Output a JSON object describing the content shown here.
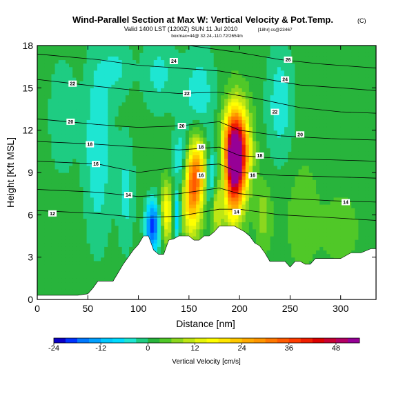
{
  "header": {
    "title": "Wind-Parallel Section at Max W: Vertical Velocity & Pot.Temp.",
    "copyright": "(C)",
    "valid_line": "Valid 1400 LST (1200Z) SUN 11 Jul 2010",
    "valid_suffix": "[18hr] cs@23467",
    "position_line": "boxmax=44@ 32.24,-110.72/2654m"
  },
  "chart_data": {
    "type": "heatmap",
    "title": "Wind-Parallel Section at Max W: Vertical Velocity & Pot.Temp.",
    "xlabel": "Distance [nm]",
    "ylabel": "Height [Kft MSL]",
    "xlim": [
      0,
      335
    ],
    "ylim": [
      0,
      18
    ],
    "x_ticks": [
      0,
      50,
      100,
      150,
      200,
      250,
      300
    ],
    "y_ticks": [
      0,
      3,
      6,
      9,
      12,
      15,
      18
    ],
    "colorbar": {
      "label": "Vertical Velocity [cm/s]",
      "tick_values": [
        -24,
        -12,
        0,
        12,
        24,
        36,
        48
      ],
      "range": [
        -24,
        54
      ],
      "bins": [
        {
          "from": -24,
          "to": -21,
          "color": "#0a00c8"
        },
        {
          "from": -21,
          "to": -18,
          "color": "#0032ff"
        },
        {
          "from": -18,
          "to": -15,
          "color": "#0078ff"
        },
        {
          "from": -15,
          "to": -12,
          "color": "#00a0ff"
        },
        {
          "from": -12,
          "to": -9,
          "color": "#00c8ff"
        },
        {
          "from": -9,
          "to": -6,
          "color": "#00dcff"
        },
        {
          "from": -6,
          "to": -3,
          "color": "#1ee6d2"
        },
        {
          "from": -3,
          "to": 0,
          "color": "#1ecc82"
        },
        {
          "from": 0,
          "to": 3,
          "color": "#28b43c"
        },
        {
          "from": 3,
          "to": 6,
          "color": "#50c828"
        },
        {
          "from": 6,
          "to": 9,
          "color": "#8cd71e"
        },
        {
          "from": 9,
          "to": 12,
          "color": "#bee614"
        },
        {
          "from": 12,
          "to": 15,
          "color": "#e6f50a"
        },
        {
          "from": 15,
          "to": 18,
          "color": "#ffff00"
        },
        {
          "from": 18,
          "to": 21,
          "color": "#ffe600"
        },
        {
          "from": 21,
          "to": 24,
          "color": "#ffc800"
        },
        {
          "from": 24,
          "to": 27,
          "color": "#ffaa00"
        },
        {
          "from": 27,
          "to": 30,
          "color": "#ff9600"
        },
        {
          "from": 30,
          "to": 33,
          "color": "#ff7800"
        },
        {
          "from": 33,
          "to": 36,
          "color": "#ff5a00"
        },
        {
          "from": 36,
          "to": 39,
          "color": "#ff3c00"
        },
        {
          "from": 39,
          "to": 42,
          "color": "#f01e00"
        },
        {
          "from": 42,
          "to": 45,
          "color": "#dc0000"
        },
        {
          "from": 45,
          "to": 48,
          "color": "#c80032"
        },
        {
          "from": 48,
          "to": 51,
          "color": "#b40064"
        },
        {
          "from": 51,
          "to": 54,
          "color": "#960096"
        }
      ]
    },
    "background_w": 2,
    "terrain": [
      [
        0,
        0.3
      ],
      [
        10,
        0.3
      ],
      [
        20,
        0.3
      ],
      [
        30,
        0.3
      ],
      [
        40,
        0.3
      ],
      [
        50,
        0.4
      ],
      [
        55,
        0.8
      ],
      [
        60,
        1.3
      ],
      [
        65,
        1.3
      ],
      [
        70,
        1.3
      ],
      [
        75,
        1.3
      ],
      [
        80,
        1.9
      ],
      [
        85,
        2.5
      ],
      [
        90,
        3.0
      ],
      [
        95,
        3.5
      ],
      [
        100,
        3.9
      ],
      [
        105,
        4.5
      ],
      [
        110,
        4.5
      ],
      [
        115,
        3.5
      ],
      [
        120,
        3.2
      ],
      [
        125,
        3.2
      ],
      [
        130,
        4.2
      ],
      [
        135,
        4.3
      ],
      [
        140,
        4.5
      ],
      [
        145,
        4.5
      ],
      [
        150,
        4.5
      ],
      [
        155,
        4.2
      ],
      [
        160,
        4.2
      ],
      [
        165,
        4.5
      ],
      [
        170,
        4.5
      ],
      [
        175,
        4.8
      ],
      [
        180,
        5.2
      ],
      [
        185,
        5.2
      ],
      [
        190,
        5.2
      ],
      [
        195,
        5.2
      ],
      [
        200,
        5.0
      ],
      [
        205,
        4.8
      ],
      [
        210,
        4.5
      ],
      [
        215,
        4.0
      ],
      [
        220,
        3.8
      ],
      [
        225,
        3.3
      ],
      [
        230,
        2.7
      ],
      [
        235,
        2.7
      ],
      [
        240,
        2.7
      ],
      [
        245,
        2.7
      ],
      [
        250,
        2.3
      ],
      [
        255,
        2.7
      ],
      [
        260,
        2.7
      ],
      [
        265,
        2.5
      ],
      [
        270,
        2.5
      ],
      [
        275,
        2.9
      ],
      [
        280,
        2.9
      ],
      [
        290,
        2.9
      ],
      [
        300,
        2.9
      ],
      [
        310,
        3.3
      ],
      [
        320,
        3.3
      ],
      [
        330,
        3.6
      ],
      [
        335,
        3.6
      ]
    ],
    "updraft_cores": [
      {
        "x": 197,
        "y": 10.5,
        "sx": 8,
        "sy": 2.0,
        "w": 50
      },
      {
        "x": 193,
        "y": 8.8,
        "sx": 7,
        "sy": 2.4,
        "w": 26
      },
      {
        "x": 158,
        "y": 9.0,
        "sx": 7,
        "sy": 1.8,
        "w": 24
      },
      {
        "x": 152,
        "y": 7.2,
        "sx": 6,
        "sy": 2.0,
        "w": 18
      },
      {
        "x": 128,
        "y": 6.2,
        "sx": 4,
        "sy": 1.4,
        "w": 16
      },
      {
        "x": 177,
        "y": 6.6,
        "sx": 4,
        "sy": 1.4,
        "w": 12
      },
      {
        "x": 224,
        "y": 6.0,
        "sx": 5,
        "sy": 1.5,
        "w": 6
      },
      {
        "x": 262,
        "y": 6.0,
        "sx": 10,
        "sy": 2.5,
        "w": 3
      },
      {
        "x": 300,
        "y": 5.0,
        "sx": 14,
        "sy": 2.0,
        "w": 2
      }
    ],
    "downdraft_cores": [
      {
        "x": 114,
        "y": 5.2,
        "sx": 5,
        "sy": 1.3,
        "w": -22
      },
      {
        "x": 138,
        "y": 6.0,
        "sx": 3,
        "sy": 1.2,
        "w": -12
      },
      {
        "x": 172,
        "y": 8.4,
        "sx": 5,
        "sy": 1.8,
        "w": -12
      },
      {
        "x": 185,
        "y": 9.2,
        "sx": 4,
        "sy": 1.6,
        "w": -10
      },
      {
        "x": 143,
        "y": 9.8,
        "sx": 6,
        "sy": 1.6,
        "w": -9
      },
      {
        "x": 60,
        "y": 11.0,
        "sx": 10,
        "sy": 5.0,
        "w": -8
      },
      {
        "x": 160,
        "y": 14.5,
        "sx": 12,
        "sy": 2.5,
        "w": -7
      },
      {
        "x": 120,
        "y": 16.0,
        "sx": 12,
        "sy": 2.0,
        "w": -6
      },
      {
        "x": 240,
        "y": 14.0,
        "sx": 10,
        "sy": 3.0,
        "w": -7
      },
      {
        "x": 25,
        "y": 13.0,
        "sx": 10,
        "sy": 3.0,
        "w": -5
      },
      {
        "x": 88,
        "y": 7.5,
        "sx": 6,
        "sy": 3.0,
        "w": -6
      },
      {
        "x": 80,
        "y": 16.5,
        "sx": 10,
        "sy": 1.5,
        "w": -5
      }
    ],
    "isentropes": [
      {
        "label": "12",
        "label_at": [
          15,
          6.1
        ],
        "points": [
          [
            0,
            6.3
          ],
          [
            60,
            6.1
          ],
          [
            100,
            5.8
          ],
          [
            140,
            5.9
          ],
          [
            180,
            6.4
          ],
          [
            200,
            6.4
          ],
          [
            240,
            6.0
          ],
          [
            290,
            5.8
          ],
          [
            335,
            5.6
          ]
        ]
      },
      {
        "label": "14",
        "label_at": [
          90,
          7.4
        ],
        "points": [
          [
            0,
            7.8
          ],
          [
            60,
            7.6
          ],
          [
            100,
            7.3
          ],
          [
            140,
            7.5
          ],
          [
            180,
            7.9
          ],
          [
            200,
            7.5
          ],
          [
            240,
            7.2
          ],
          [
            290,
            7.0
          ],
          [
            335,
            6.9
          ]
        ]
      },
      {
        "label": "16",
        "label_at": [
          58,
          9.6
        ],
        "points": [
          [
            0,
            9.8
          ],
          [
            60,
            9.6
          ],
          [
            100,
            9.0
          ],
          [
            140,
            9.4
          ],
          [
            180,
            9.6
          ],
          [
            200,
            9.0
          ],
          [
            240,
            8.8
          ],
          [
            290,
            8.7
          ],
          [
            335,
            8.6
          ]
        ]
      },
      {
        "label": "18",
        "label_at": [
          52,
          11.0
        ],
        "points": [
          [
            0,
            11.2
          ],
          [
            60,
            11.0
          ],
          [
            100,
            10.8
          ],
          [
            140,
            10.6
          ],
          [
            180,
            10.8
          ],
          [
            200,
            10.2
          ],
          [
            240,
            10.0
          ],
          [
            290,
            9.9
          ],
          [
            335,
            9.8
          ]
        ]
      },
      {
        "label": "20",
        "label_at": [
          33,
          12.6
        ],
        "points": [
          [
            0,
            12.8
          ],
          [
            60,
            12.4
          ],
          [
            100,
            12.2
          ],
          [
            140,
            12.3
          ],
          [
            180,
            12.6
          ],
          [
            200,
            12.0
          ],
          [
            240,
            11.6
          ],
          [
            290,
            11.4
          ],
          [
            335,
            11.3
          ]
        ]
      },
      {
        "label": "22",
        "label_at": [
          35,
          15.3
        ],
        "points": [
          [
            0,
            15.6
          ],
          [
            60,
            15.1
          ],
          [
            100,
            14.8
          ],
          [
            140,
            14.6
          ],
          [
            180,
            14.7
          ],
          [
            220,
            14.2
          ],
          [
            260,
            13.6
          ],
          [
            300,
            13.3
          ],
          [
            335,
            13.2
          ]
        ]
      },
      {
        "label": "24",
        "label_at": [
          140,
          16.5
        ],
        "points": [
          [
            0,
            17.4
          ],
          [
            60,
            17.0
          ],
          [
            100,
            16.6
          ],
          [
            140,
            16.4
          ],
          [
            180,
            16.2
          ],
          [
            220,
            15.7
          ],
          [
            260,
            15.2
          ],
          [
            300,
            15.0
          ],
          [
            335,
            14.8
          ]
        ]
      },
      {
        "label": "26",
        "label_at": [
          245,
          17.0
        ],
        "points": [
          [
            150,
            18.0
          ],
          [
            200,
            17.5
          ],
          [
            240,
            17.0
          ],
          [
            280,
            16.7
          ],
          [
            335,
            16.4
          ]
        ]
      }
    ],
    "isentrope_labels": [
      {
        "text": "12",
        "x": 15,
        "y": 6.1
      },
      {
        "text": "14",
        "x": 90,
        "y": 7.4
      },
      {
        "text": "14",
        "x": 197,
        "y": 6.2
      },
      {
        "text": "14",
        "x": 305,
        "y": 6.9
      },
      {
        "text": "16",
        "x": 58,
        "y": 9.6
      },
      {
        "text": "16",
        "x": 162,
        "y": 8.8
      },
      {
        "text": "16",
        "x": 213,
        "y": 8.8
      },
      {
        "text": "18",
        "x": 52,
        "y": 11.0
      },
      {
        "text": "18",
        "x": 162,
        "y": 10.8
      },
      {
        "text": "18",
        "x": 220,
        "y": 10.2
      },
      {
        "text": "20",
        "x": 33,
        "y": 12.6
      },
      {
        "text": "20",
        "x": 143,
        "y": 12.3
      },
      {
        "text": "20",
        "x": 260,
        "y": 11.7
      },
      {
        "text": "22",
        "x": 35,
        "y": 15.3
      },
      {
        "text": "22",
        "x": 148,
        "y": 14.6
      },
      {
        "text": "22",
        "x": 235,
        "y": 13.3
      },
      {
        "text": "24",
        "x": 135,
        "y": 16.9
      },
      {
        "text": "24",
        "x": 245,
        "y": 15.6
      },
      {
        "text": "26",
        "x": 248,
        "y": 17.0
      }
    ]
  }
}
